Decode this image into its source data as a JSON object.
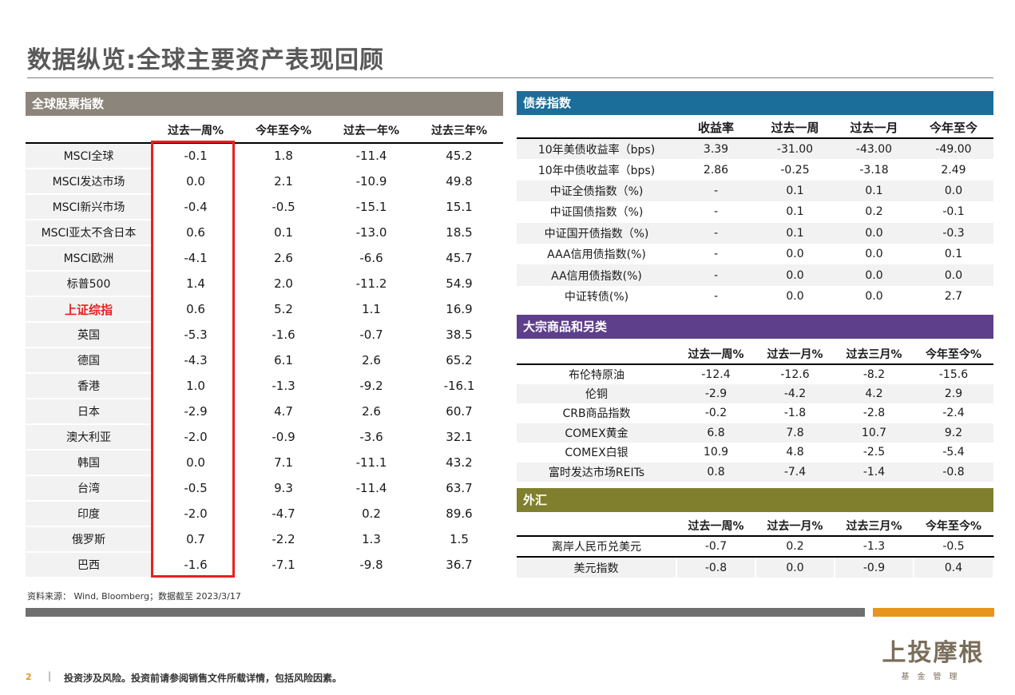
{
  "title": "数据纵览:全球主要资产表现回顾",
  "equity": {
    "header": "全球股票指数",
    "columns": [
      "过去一周%",
      "今年至今%",
      "过去一年%",
      "过去三年%"
    ],
    "rows": [
      {
        "name": "MSCI全球",
        "v": [
          "-0.1",
          "1.8",
          "-11.4",
          "45.2"
        ]
      },
      {
        "name": "MSCI发达市场",
        "v": [
          "0.0",
          "2.1",
          "-10.9",
          "49.8"
        ]
      },
      {
        "name": "MSCI新兴市场",
        "v": [
          "-0.4",
          "-0.5",
          "-15.1",
          "15.1"
        ]
      },
      {
        "name": "MSCI亚太不含日本",
        "v": [
          "0.6",
          "0.1",
          "-13.0",
          "18.5"
        ]
      },
      {
        "name": "MSCI欧洲",
        "v": [
          "-4.1",
          "2.6",
          "-6.6",
          "45.7"
        ]
      },
      {
        "name": "标普500",
        "v": [
          "1.4",
          "2.0",
          "-11.2",
          "54.9"
        ]
      },
      {
        "name": "上证综指",
        "v": [
          "0.6",
          "5.2",
          "1.1",
          "16.9"
        ]
      },
      {
        "name": "英国",
        "v": [
          "-5.3",
          "-1.6",
          "-0.7",
          "38.5"
        ]
      },
      {
        "name": "德国",
        "v": [
          "-4.3",
          "6.1",
          "2.6",
          "65.2"
        ]
      },
      {
        "name": "香港",
        "v": [
          "1.0",
          "-1.3",
          "-9.2",
          "-16.1"
        ]
      },
      {
        "name": "日本",
        "v": [
          "-2.9",
          "4.7",
          "2.6",
          "60.7"
        ]
      },
      {
        "name": "澳大利亚",
        "v": [
          "-2.0",
          "-0.9",
          "-3.6",
          "32.1"
        ]
      },
      {
        "name": "韩国",
        "v": [
          "0.0",
          "7.1",
          "-11.1",
          "43.2"
        ]
      },
      {
        "name": "台湾",
        "v": [
          "-0.5",
          "9.3",
          "-11.4",
          "63.7"
        ]
      },
      {
        "name": "印度",
        "v": [
          "-2.0",
          "-4.7",
          "0.2",
          "89.6"
        ]
      },
      {
        "name": "俄罗斯",
        "v": [
          "0.7",
          "-2.2",
          "1.3",
          "1.5"
        ]
      },
      {
        "name": "巴西",
        "v": [
          "-1.6",
          "-7.1",
          "-9.8",
          "36.7"
        ]
      }
    ]
  },
  "bond": {
    "header": "债券指数",
    "columns": [
      "收益率",
      "过去一周",
      "过去一月",
      "今年至今"
    ],
    "rows": [
      {
        "name": "10年美债收益率（bps)",
        "v": [
          "3.39",
          "-31.00",
          "-43.00",
          "-49.00"
        ]
      },
      {
        "name": "10年中债收益率（bps)",
        "v": [
          "2.86",
          "-0.25",
          "-3.18",
          "2.49"
        ]
      },
      {
        "name": "中证全债指数（%)",
        "v": [
          "-",
          "0.1",
          "0.1",
          "0.0"
        ]
      },
      {
        "name": "中证国债指数（%)",
        "v": [
          "-",
          "0.1",
          "0.2",
          "-0.1"
        ]
      },
      {
        "name": "中证国开债指数（%)",
        "v": [
          "-",
          "0.1",
          "0.0",
          "-0.3"
        ]
      },
      {
        "name": "AAA信用债指数(%)",
        "v": [
          "-",
          "0.0",
          "0.0",
          "0.1"
        ]
      },
      {
        "name": "AA信用债指数(%)",
        "v": [
          "-",
          "0.0",
          "0.0",
          "0.0"
        ]
      },
      {
        "name": "中证转债(%)",
        "v": [
          "-",
          "0.0",
          "0.0",
          "2.7"
        ]
      }
    ]
  },
  "commodities": {
    "header": "大宗商品和另类",
    "columns": [
      "过去一周%",
      "过去一月%",
      "过去三月%",
      "今年至今%"
    ],
    "rows": [
      {
        "name": "布伦特原油",
        "v": [
          "-12.4",
          "-12.6",
          "-8.2",
          "-15.6"
        ]
      },
      {
        "name": "伦铜",
        "v": [
          "-2.9",
          "-4.2",
          "4.2",
          "2.9"
        ]
      },
      {
        "name": "CRB商品指数",
        "v": [
          "-0.2",
          "-1.8",
          "-2.8",
          "-2.4"
        ]
      },
      {
        "name": "COMEX黄金",
        "v": [
          "6.8",
          "7.8",
          "10.7",
          "9.2"
        ]
      },
      {
        "name": "COMEX白银",
        "v": [
          "10.9",
          "4.8",
          "-2.5",
          "-5.4"
        ]
      },
      {
        "name": "富时发达市场REITs",
        "v": [
          "0.8",
          "-7.4",
          "-1.4",
          "-0.8"
        ]
      }
    ]
  },
  "fx": {
    "header": "外汇",
    "columns": [
      "过去一周%",
      "过去一月%",
      "过去三月%",
      "今年至今%"
    ],
    "rows": [
      {
        "name": "离岸人民币兑美元",
        "v": [
          "-0.7",
          "0.2",
          "-1.3",
          "-0.5"
        ]
      },
      {
        "name": "美元指数",
        "v": [
          "-0.8",
          "0.0",
          "-0.9",
          "0.4"
        ]
      }
    ]
  },
  "source": "资料来源： Wind, Bloomberg；数据截至 2023/3/17",
  "footer": {
    "page_number": "2",
    "separator": "|",
    "disclaimer": "投资涉及风险。投资前请参阅销售文件所载详情，包括风险因素。"
  },
  "logo": {
    "main": "上投摩根",
    "sub": "基金管理"
  },
  "colors": {
    "equity": "#8c857b",
    "bond": "#1b6e99",
    "commodities": "#5e3f8b",
    "fx": "#7f7f2d",
    "highlight": "#e8211f",
    "accent": "#e8951e"
  }
}
